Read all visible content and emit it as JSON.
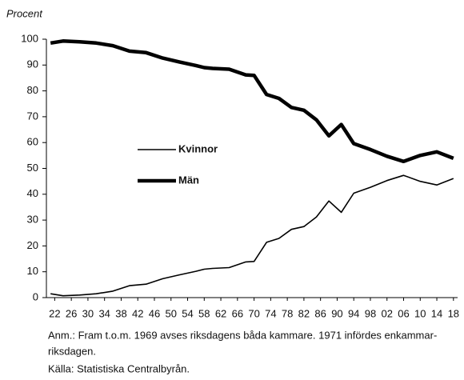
{
  "chart_data": {
    "type": "line",
    "ylabel": "Procent",
    "x": [
      1921,
      1924,
      1928,
      1932,
      1936,
      1940,
      1944,
      1948,
      1952,
      1956,
      1958,
      1960,
      1964,
      1968,
      1970,
      1973,
      1976,
      1979,
      1982,
      1985,
      1988,
      1991,
      1994,
      1998,
      2002,
      2006,
      2010,
      2014,
      2018
    ],
    "series": [
      {
        "name": "Kvinnor",
        "color": "#000000",
        "values": [
          1.5,
          0.7,
          1,
          1.5,
          2.5,
          4.6,
          5.2,
          7.3,
          8.8,
          10.2,
          11,
          11.3,
          11.6,
          13.8,
          14,
          21.4,
          22.9,
          26.4,
          27.5,
          31.2,
          37.4,
          33,
          40.4,
          42.7,
          45.3,
          47.3,
          45,
          43.6,
          46.1
        ]
      },
      {
        "name": "Män",
        "color": "#000000",
        "values": [
          98.5,
          99.3,
          99,
          98.5,
          97.5,
          95.4,
          94.8,
          92.7,
          91.2,
          89.8,
          89,
          88.7,
          88.4,
          86.2,
          86,
          78.6,
          77.1,
          73.6,
          72.5,
          68.8,
          62.6,
          67,
          59.6,
          57.3,
          54.7,
          52.7,
          55,
          56.4,
          53.9
        ]
      }
    ],
    "xlim": [
      1920,
      2019
    ],
    "xticks": [
      {
        "value": 1922,
        "label": "22"
      },
      {
        "value": 1926,
        "label": "26"
      },
      {
        "value": 1930,
        "label": "30"
      },
      {
        "value": 1934,
        "label": "34"
      },
      {
        "value": 1938,
        "label": "38"
      },
      {
        "value": 1942,
        "label": "42"
      },
      {
        "value": 1946,
        "label": "46"
      },
      {
        "value": 1950,
        "label": "50"
      },
      {
        "value": 1954,
        "label": "54"
      },
      {
        "value": 1958,
        "label": "58"
      },
      {
        "value": 1962,
        "label": "62"
      },
      {
        "value": 1966,
        "label": "66"
      },
      {
        "value": 1970,
        "label": "70"
      },
      {
        "value": 1974,
        "label": "74"
      },
      {
        "value": 1978,
        "label": "78"
      },
      {
        "value": 1982,
        "label": "82"
      },
      {
        "value": 1986,
        "label": "86"
      },
      {
        "value": 1990,
        "label": "90"
      },
      {
        "value": 1994,
        "label": "94"
      },
      {
        "value": 1998,
        "label": "98"
      },
      {
        "value": 2002,
        "label": "02"
      },
      {
        "value": 2006,
        "label": "06"
      },
      {
        "value": 2010,
        "label": "10"
      },
      {
        "value": 2014,
        "label": "14"
      },
      {
        "value": 2018,
        "label": "18"
      }
    ],
    "ylim": [
      0,
      100
    ],
    "yticks": [
      0,
      10,
      20,
      30,
      40,
      50,
      60,
      70,
      80,
      90,
      100
    ],
    "grid": false,
    "note": [
      "Anm.: Fram t.o.m. 1969 avses riksdagens båda kammare. 1971 infördes enkammar-",
      "riksdagen."
    ],
    "source": "Källa: Statistiska Centralbyrån."
  }
}
